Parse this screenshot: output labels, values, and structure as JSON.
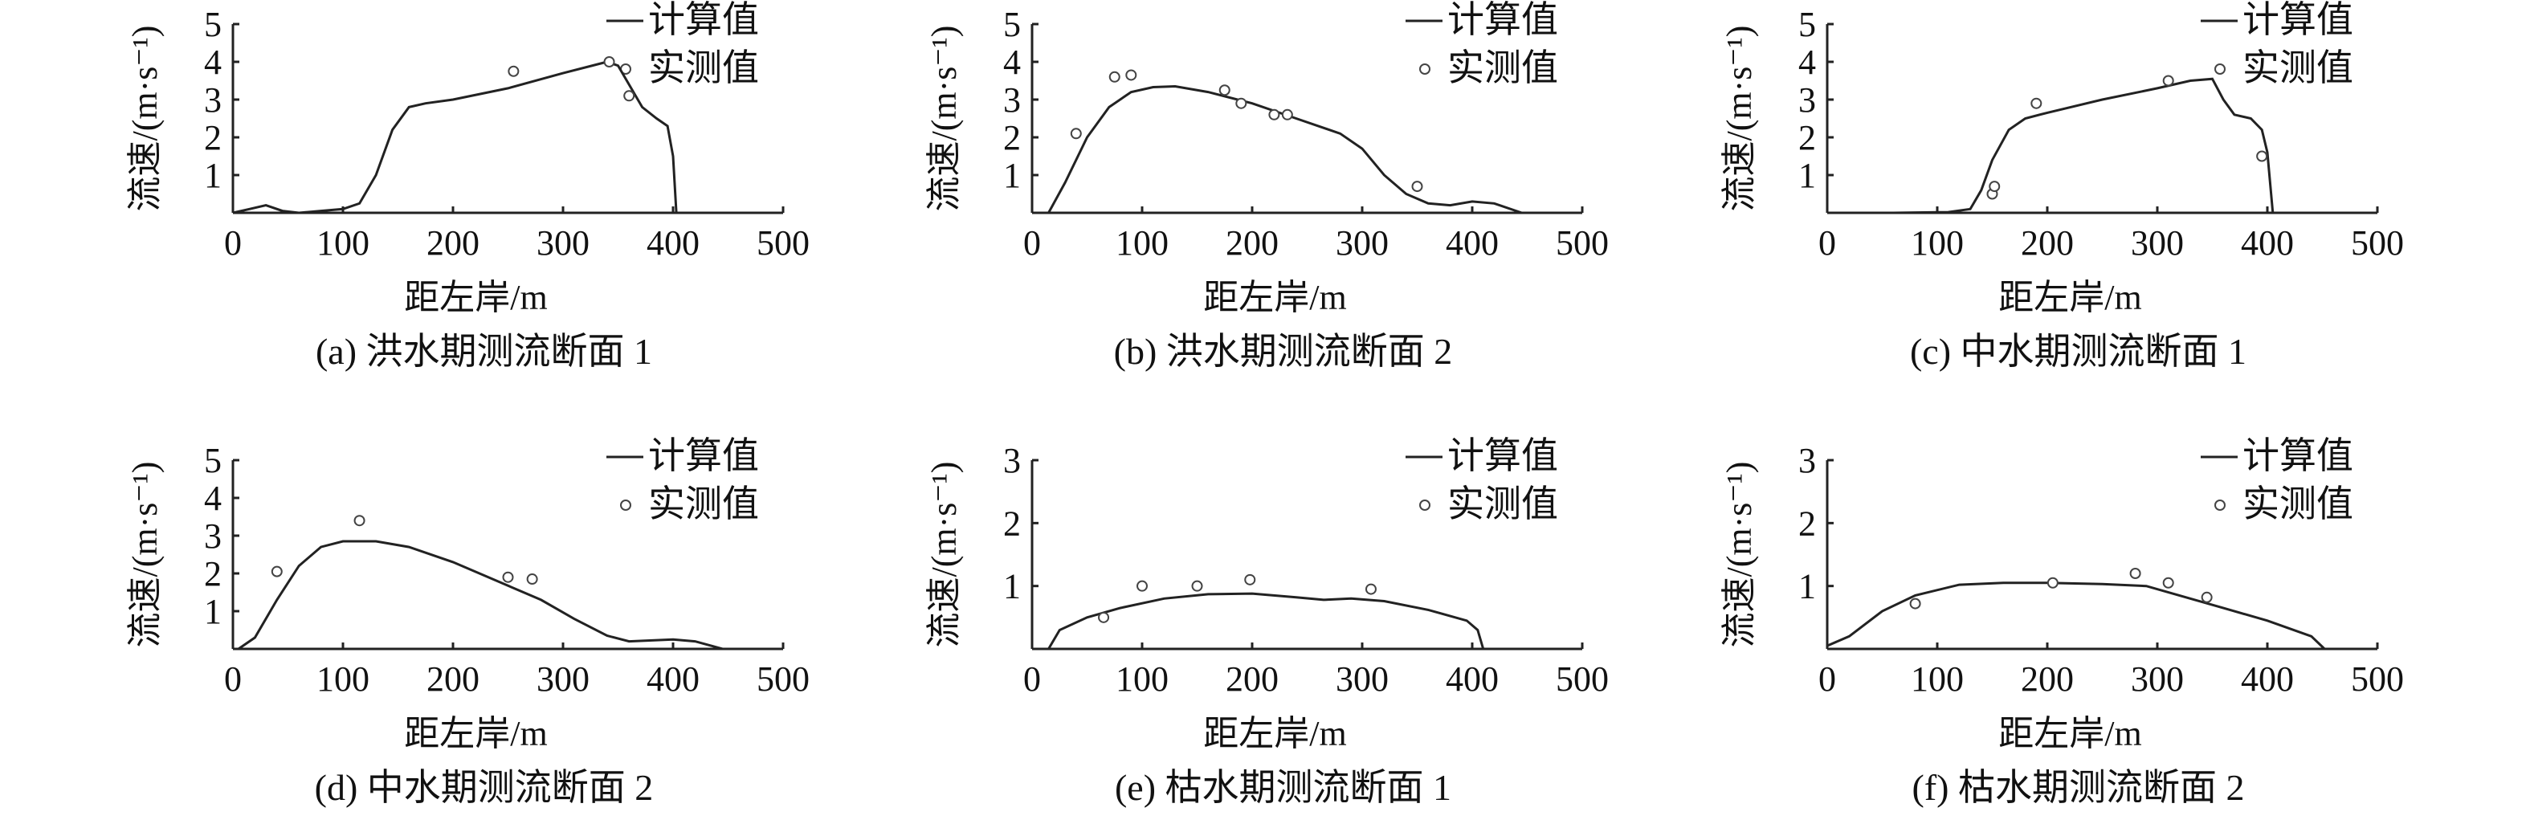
{
  "legend": {
    "calc": "计算值",
    "obs": "实测值"
  },
  "chart_data": [
    {
      "type": "line",
      "caption": "(a) 洪水期测流断面 1",
      "xlabel": "距左岸/m",
      "ylabel": "流速/(m·s⁻¹)",
      "xlim": [
        0,
        500
      ],
      "ylim": [
        0,
        5
      ],
      "xticks": [
        0,
        100,
        200,
        300,
        400,
        500
      ],
      "yticks": [
        1,
        2,
        3,
        4,
        5
      ],
      "series": [
        {
          "name": "计算值",
          "kind": "line",
          "points": [
            [
              0,
              0
            ],
            [
              15,
              0.1
            ],
            [
              30,
              0.2
            ],
            [
              45,
              0.05
            ],
            [
              60,
              0
            ],
            [
              80,
              0.05
            ],
            [
              100,
              0.1
            ],
            [
              115,
              0.25
            ],
            [
              130,
              1.0
            ],
            [
              145,
              2.2
            ],
            [
              160,
              2.8
            ],
            [
              175,
              2.9
            ],
            [
              200,
              3.0
            ],
            [
              250,
              3.3
            ],
            [
              300,
              3.7
            ],
            [
              340,
              4.0
            ],
            [
              350,
              3.9
            ],
            [
              360,
              3.4
            ],
            [
              372,
              2.8
            ],
            [
              385,
              2.5
            ],
            [
              395,
              2.3
            ],
            [
              400,
              1.5
            ],
            [
              403,
              0
            ]
          ]
        },
        {
          "name": "实测值",
          "kind": "scatter",
          "points": [
            [
              255,
              3.75
            ],
            [
              342,
              4.0
            ],
            [
              360,
              3.1
            ]
          ]
        }
      ]
    },
    {
      "type": "line",
      "caption": "(b) 洪水期测流断面 2",
      "xlabel": "距左岸/m",
      "ylabel": "流速/(m·s⁻¹)",
      "xlim": [
        0,
        500
      ],
      "ylim": [
        0,
        5
      ],
      "xticks": [
        0,
        100,
        200,
        300,
        400,
        500
      ],
      "yticks": [
        1,
        2,
        3,
        4,
        5
      ],
      "series": [
        {
          "name": "计算值",
          "kind": "line",
          "points": [
            [
              15,
              0
            ],
            [
              30,
              0.8
            ],
            [
              50,
              2.0
            ],
            [
              70,
              2.8
            ],
            [
              90,
              3.2
            ],
            [
              110,
              3.33
            ],
            [
              130,
              3.35
            ],
            [
              160,
              3.2
            ],
            [
              200,
              2.9
            ],
            [
              240,
              2.5
            ],
            [
              280,
              2.1
            ],
            [
              300,
              1.7
            ],
            [
              320,
              1.0
            ],
            [
              340,
              0.5
            ],
            [
              360,
              0.25
            ],
            [
              380,
              0.2
            ],
            [
              400,
              0.3
            ],
            [
              420,
              0.25
            ],
            [
              445,
              0
            ]
          ]
        },
        {
          "name": "实测值",
          "kind": "scatter",
          "points": [
            [
              40,
              2.1
            ],
            [
              75,
              3.6
            ],
            [
              90,
              3.65
            ],
            [
              175,
              3.25
            ],
            [
              190,
              2.9
            ],
            [
              220,
              2.6
            ],
            [
              232,
              2.6
            ],
            [
              350,
              0.7
            ]
          ]
        }
      ]
    },
    {
      "type": "line",
      "caption": "(c) 中水期测流断面 1",
      "xlabel": "距左岸/m",
      "ylabel": "流速/(m·s⁻¹)",
      "xlim": [
        0,
        500
      ],
      "ylim": [
        0,
        5
      ],
      "xticks": [
        0,
        100,
        200,
        300,
        400,
        500
      ],
      "yticks": [
        1,
        2,
        3,
        4,
        5
      ],
      "series": [
        {
          "name": "计算值",
          "kind": "line",
          "points": [
            [
              0,
              0
            ],
            [
              60,
              0
            ],
            [
              110,
              0.02
            ],
            [
              130,
              0.1
            ],
            [
              140,
              0.6
            ],
            [
              150,
              1.4
            ],
            [
              165,
              2.2
            ],
            [
              180,
              2.5
            ],
            [
              200,
              2.65
            ],
            [
              250,
              3.0
            ],
            [
              300,
              3.3
            ],
            [
              330,
              3.5
            ],
            [
              350,
              3.55
            ],
            [
              360,
              3.0
            ],
            [
              370,
              2.6
            ],
            [
              385,
              2.5
            ],
            [
              395,
              2.2
            ],
            [
              400,
              1.6
            ],
            [
              405,
              0
            ]
          ]
        },
        {
          "name": "实测值",
          "kind": "scatter",
          "points": [
            [
              150,
              0.5
            ],
            [
              152,
              0.7
            ],
            [
              190,
              2.9
            ],
            [
              310,
              3.5
            ],
            [
              395,
              1.5
            ]
          ]
        }
      ]
    },
    {
      "type": "line",
      "caption": "(d) 中水期测流断面 2",
      "xlabel": "距左岸/m",
      "ylabel": "流速/(m·s⁻¹)",
      "xlim": [
        0,
        500
      ],
      "ylim": [
        0,
        5
      ],
      "xticks": [
        0,
        100,
        200,
        300,
        400,
        500
      ],
      "yticks": [
        1,
        2,
        3,
        4,
        5
      ],
      "series": [
        {
          "name": "计算值",
          "kind": "line",
          "points": [
            [
              5,
              0
            ],
            [
              20,
              0.3
            ],
            [
              40,
              1.3
            ],
            [
              60,
              2.2
            ],
            [
              80,
              2.7
            ],
            [
              100,
              2.85
            ],
            [
              130,
              2.85
            ],
            [
              160,
              2.7
            ],
            [
              200,
              2.3
            ],
            [
              240,
              1.8
            ],
            [
              280,
              1.3
            ],
            [
              310,
              0.8
            ],
            [
              340,
              0.35
            ],
            [
              360,
              0.2
            ],
            [
              400,
              0.25
            ],
            [
              420,
              0.2
            ],
            [
              445,
              0
            ]
          ]
        },
        {
          "name": "实测值",
          "kind": "scatter",
          "points": [
            [
              40,
              2.05
            ],
            [
              115,
              3.4
            ],
            [
              250,
              1.9
            ],
            [
              272,
              1.85
            ]
          ]
        }
      ]
    },
    {
      "type": "line",
      "caption": "(e) 枯水期测流断面 1",
      "xlabel": "距左岸/m",
      "ylabel": "流速/(m·s⁻¹)",
      "xlim": [
        0,
        500
      ],
      "ylim": [
        0,
        3
      ],
      "xticks": [
        0,
        100,
        200,
        300,
        400,
        500
      ],
      "yticks": [
        1,
        2,
        3
      ],
      "series": [
        {
          "name": "计算值",
          "kind": "line",
          "points": [
            [
              15,
              0
            ],
            [
              25,
              0.3
            ],
            [
              50,
              0.5
            ],
            [
              80,
              0.65
            ],
            [
              120,
              0.8
            ],
            [
              160,
              0.87
            ],
            [
              200,
              0.88
            ],
            [
              240,
              0.82
            ],
            [
              265,
              0.78
            ],
            [
              290,
              0.8
            ],
            [
              320,
              0.76
            ],
            [
              360,
              0.62
            ],
            [
              395,
              0.45
            ],
            [
              405,
              0.3
            ],
            [
              410,
              0
            ]
          ]
        },
        {
          "name": "实测值",
          "kind": "scatter",
          "points": [
            [
              65,
              0.5
            ],
            [
              100,
              1.0
            ],
            [
              150,
              1.0
            ],
            [
              198,
              1.1
            ],
            [
              308,
              0.95
            ]
          ]
        }
      ]
    },
    {
      "type": "line",
      "caption": "(f) 枯水期测流断面 2",
      "xlabel": "距左岸/m",
      "ylabel": "流速/(m·s⁻¹)",
      "xlim": [
        0,
        500
      ],
      "ylim": [
        0,
        3
      ],
      "xticks": [
        0,
        100,
        200,
        300,
        400,
        500
      ],
      "yticks": [
        1,
        2,
        3
      ],
      "series": [
        {
          "name": "计算值",
          "kind": "line",
          "points": [
            [
              0,
              0.05
            ],
            [
              20,
              0.2
            ],
            [
              50,
              0.6
            ],
            [
              80,
              0.85
            ],
            [
              120,
              1.02
            ],
            [
              160,
              1.05
            ],
            [
              200,
              1.05
            ],
            [
              250,
              1.03
            ],
            [
              290,
              1.0
            ],
            [
              320,
              0.85
            ],
            [
              360,
              0.65
            ],
            [
              400,
              0.45
            ],
            [
              440,
              0.2
            ],
            [
              452,
              0
            ]
          ]
        },
        {
          "name": "实测值",
          "kind": "scatter",
          "points": [
            [
              80,
              0.72
            ],
            [
              205,
              1.05
            ],
            [
              280,
              1.2
            ],
            [
              310,
              1.05
            ],
            [
              345,
              0.82
            ]
          ]
        }
      ]
    }
  ]
}
